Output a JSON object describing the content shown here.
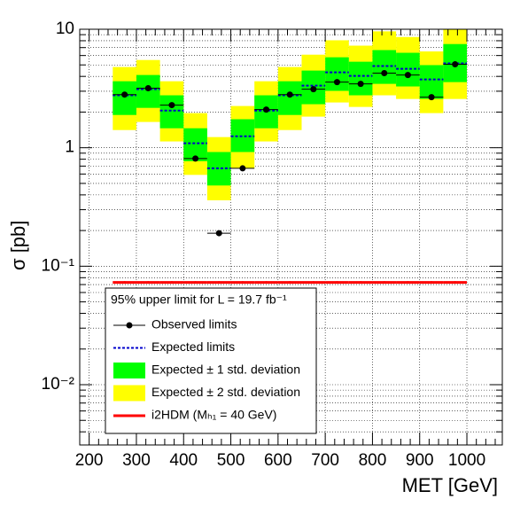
{
  "chart_data": {
    "type": "limit_bands",
    "y_label": "σ [pb]",
    "x_label": "MET [GeV]",
    "legend_title": "95% upper limit for L = 19.7 fb⁻¹",
    "x": [
      275,
      325,
      375,
      425,
      475,
      525,
      575,
      625,
      675,
      725,
      775,
      825,
      875,
      925,
      975
    ],
    "xlim": [
      180,
      1075
    ],
    "xticks": [
      200,
      300,
      400,
      500,
      600,
      700,
      800,
      900,
      1000
    ],
    "ylim": [
      0.0031,
      10
    ],
    "yticks": [
      {
        "value": 0.01,
        "label": "10⁻²"
      },
      {
        "value": 0.1,
        "label": "10⁻¹"
      },
      1,
      10
    ],
    "log_y": true,
    "grid": true,
    "series": [
      {
        "name": "Observed limits",
        "color": "#000000",
        "kind": "points",
        "values": [
          2.81,
          3.18,
          2.29,
          0.81,
          0.19,
          0.67,
          2.1,
          2.81,
          3.12,
          3.58,
          3.46,
          4.26,
          4.11,
          2.67,
          5.06
        ]
      },
      {
        "name": "Expected limits",
        "color": "#0000cc",
        "kind": "dashed",
        "values": [
          2.77,
          3.12,
          2.06,
          1.09,
          0.67,
          1.25,
          2.06,
          2.77,
          3.34,
          4.33,
          4.04,
          4.89,
          4.64,
          3.77,
          5.15
        ]
      },
      {
        "name": "Expected ± 1 std. deviation",
        "color": "#00ff00",
        "kind": "band",
        "low": [
          1.89,
          2.17,
          1.46,
          0.77,
          0.48,
          0.92,
          1.46,
          1.89,
          2.33,
          3.02,
          2.77,
          3.46,
          3.29,
          2.58,
          3.58
        ],
        "high": [
          3.64,
          4.11,
          2.77,
          1.46,
          0.92,
          1.74,
          2.77,
          3.64,
          4.48,
          5.8,
          5.32,
          6.67,
          6.33,
          4.98,
          7.5
        ]
      },
      {
        "name": "Expected ± 2 std. deviation",
        "color": "#ffff00",
        "kind": "band",
        "low": [
          1.41,
          1.65,
          1.13,
          0.59,
          0.36,
          0.67,
          1.13,
          1.41,
          1.83,
          2.41,
          2.21,
          2.77,
          2.58,
          1.96,
          2.58
        ],
        "high": [
          4.8,
          5.5,
          3.64,
          1.96,
          1.23,
          2.25,
          3.64,
          4.8,
          6.1,
          8.07,
          7.27,
          9.6,
          8.6,
          6.5,
          11
        ]
      },
      {
        "name": "i2HDM (Mₕ₁ = 40 GeV)",
        "color": "#ff0000",
        "kind": "line",
        "values": [
          0.073,
          0.073,
          0.073,
          0.073,
          0.073,
          0.073,
          0.073,
          0.073,
          0.073,
          0.073,
          0.073,
          0.073,
          0.073,
          0.073,
          0.073
        ]
      }
    ]
  }
}
